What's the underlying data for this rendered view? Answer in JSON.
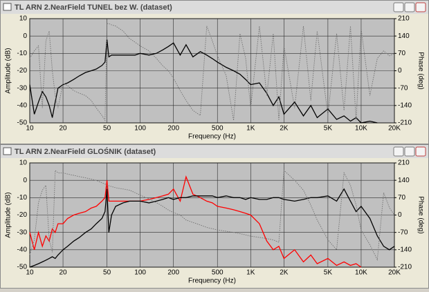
{
  "chart_data": [
    {
      "type": "line",
      "title": "TL ARN 2.NearField TUNEL bez W. (dataset)",
      "xlabel": "Frequency (Hz)",
      "ylabel": "Amplitude (dB)",
      "y2label": "Phase (deg)",
      "xscale": "log",
      "grid": true,
      "xlim": [
        10,
        20000
      ],
      "xticks": [
        10,
        20,
        50,
        100,
        200,
        500,
        {
          "value": 1000,
          "label": "1K"
        },
        {
          "value": 2000,
          "label": "2K"
        },
        {
          "value": 5000,
          "label": "5K"
        },
        {
          "value": 10000,
          "label": "10K"
        },
        {
          "value": 20000,
          "label": "20K"
        }
      ],
      "ylim": [
        -50,
        10
      ],
      "yticks": [
        -50,
        -40,
        -30,
        -20,
        -10,
        0,
        10
      ],
      "y2lim": [
        -210,
        210
      ],
      "y2ticks": [
        -210,
        -140,
        -70,
        0,
        70,
        140,
        210
      ],
      "x": [
        10,
        11,
        12,
        13,
        14,
        15,
        16,
        17,
        18,
        20,
        22,
        25,
        28,
        32,
        36,
        40,
        45,
        48,
        50,
        52,
        55,
        60,
        70,
        80,
        90,
        100,
        120,
        140,
        160,
        180,
        200,
        230,
        260,
        300,
        350,
        400,
        450,
        500,
        600,
        700,
        800,
        900,
        1000,
        1200,
        1400,
        1600,
        1800,
        2000,
        2500,
        3000,
        3500,
        4000,
        5000,
        6000,
        7000,
        8000,
        9000,
        10000,
        12000,
        14000,
        16000,
        18000,
        20000
      ],
      "series": [
        {
          "color": "#000000",
          "linestyle": "solid",
          "values": [
            -28,
            -45,
            -38,
            -32,
            -35,
            -40,
            -47,
            -38,
            -30,
            -28,
            -27,
            -25,
            -23,
            -21,
            -20,
            -19,
            -17,
            -15,
            -2,
            -12,
            -11,
            -11,
            -11,
            -11,
            -11,
            -10,
            -11,
            -10,
            -8,
            -6,
            -4,
            -11,
            -5,
            -12,
            -9,
            -11,
            -13,
            -15,
            -18,
            -20,
            -22,
            -25,
            -28,
            -27,
            -33,
            -40,
            -35,
            -45,
            -38,
            -46,
            -40,
            -47,
            -42,
            -48,
            -46,
            -49,
            -47,
            -50,
            -49,
            -50,
            null,
            null,
            null
          ]
        },
        {
          "color": "#707070",
          "linestyle": "dotted",
          "axis": "y2",
          "values": [
            50,
            80,
            100,
            -150,
            120,
            160,
            0,
            -100,
            -150,
            -50,
            -60,
            -80,
            -90,
            -100,
            -120,
            -150,
            -180,
            -200,
            190,
            190,
            185,
            180,
            160,
            130,
            115,
            100,
            80,
            50,
            20,
            0,
            -30,
            -80,
            -120,
            -160,
            -180,
            180,
            120,
            60,
            -20,
            -200,
            150,
            50,
            -150,
            180,
            -100,
            150,
            -200,
            100,
            -150,
            180,
            -120,
            160,
            -180,
            150,
            -160,
            180,
            -200,
            170,
            -100,
            50,
            80,
            60,
            70
          ]
        }
      ]
    },
    {
      "type": "line",
      "title": "TL ARN 2.NearField GLOŚNIK (dataset)",
      "xlabel": "Frequency (Hz)",
      "ylabel": "Amplitude (dB)",
      "y2label": "Phase (deg)",
      "xscale": "log",
      "grid": true,
      "xlim": [
        10,
        20000
      ],
      "xticks": [
        10,
        20,
        50,
        100,
        200,
        500,
        {
          "value": 1000,
          "label": "1K"
        },
        {
          "value": 2000,
          "label": "2K"
        },
        {
          "value": 5000,
          "label": "5K"
        },
        {
          "value": 10000,
          "label": "10K"
        },
        {
          "value": 20000,
          "label": "20K"
        }
      ],
      "ylim": [
        -50,
        10
      ],
      "yticks": [
        -50,
        -40,
        -30,
        -20,
        -10,
        0,
        10
      ],
      "y2lim": [
        -210,
        210
      ],
      "y2ticks": [
        -210,
        -140,
        -70,
        0,
        70,
        140,
        210
      ],
      "x": [
        10,
        11,
        12,
        13,
        14,
        15,
        16,
        17,
        18,
        20,
        22,
        25,
        28,
        32,
        36,
        40,
        45,
        48,
        50,
        52,
        55,
        60,
        70,
        80,
        90,
        100,
        120,
        140,
        160,
        180,
        200,
        230,
        260,
        300,
        350,
        400,
        450,
        500,
        600,
        700,
        800,
        900,
        1000,
        1200,
        1400,
        1600,
        1800,
        2000,
        2500,
        3000,
        3500,
        4000,
        5000,
        6000,
        7000,
        8000,
        9000,
        10000,
        12000,
        14000,
        16000,
        18000,
        20000
      ],
      "series": [
        {
          "color": "#ff0000",
          "linestyle": "solid",
          "values": [
            -30,
            -40,
            -30,
            -38,
            -32,
            -35,
            -28,
            -30,
            -25,
            -25,
            -22,
            -20,
            -19,
            -18,
            -16,
            -15,
            -12,
            -10,
            0,
            -12,
            -12,
            -12,
            -12,
            -12,
            -12,
            -12,
            -11,
            -10,
            -9,
            -8,
            -5,
            -12,
            2,
            -8,
            -10,
            -12,
            -13,
            -15,
            -16,
            -17,
            -18,
            -19,
            -20,
            -25,
            -35,
            -40,
            -38,
            -45,
            -40,
            -47,
            -43,
            -48,
            -45,
            -49,
            -47,
            -49,
            -48,
            -50,
            null,
            null,
            null,
            null,
            null
          ]
        },
        {
          "color": "#000000",
          "linestyle": "solid",
          "values": [
            -50,
            -49,
            -48,
            -47,
            -46,
            -45,
            -44,
            -45,
            -43,
            -40,
            -38,
            -35,
            -33,
            -30,
            -28,
            -25,
            -22,
            -18,
            -5,
            -30,
            -20,
            -15,
            -13,
            -12,
            -12,
            -12,
            -13,
            -12,
            -11,
            -10,
            -11,
            -10,
            -10,
            -9,
            -9,
            -9,
            -9,
            -10,
            -9,
            -10,
            -10,
            -11,
            -10,
            -11,
            -11,
            -10,
            -10,
            -11,
            -12,
            -11,
            -10,
            -10,
            -9,
            -12,
            -5,
            -12,
            -18,
            -15,
            -22,
            -32,
            -38,
            -40,
            -38
          ]
        },
        {
          "color": "#707070",
          "linestyle": "dotted",
          "axis": "y2",
          "values": [
            -160,
            -100,
            50,
            100,
            120,
            -100,
            -150,
            180,
            170,
            170,
            165,
            160,
            155,
            150,
            145,
            140,
            130,
            125,
            120,
            118,
            115,
            110,
            105,
            100,
            90,
            80,
            65,
            50,
            35,
            20,
            10,
            0,
            -20,
            -30,
            -40,
            -50,
            -55,
            -60,
            -65,
            -70,
            -75,
            -80,
            -85,
            -90,
            -95,
            -100,
            -110,
            180,
            140,
            100,
            40,
            -20,
            -100,
            -140,
            170,
            120,
            40,
            -60,
            -120,
            -180,
            90,
            30,
            0
          ]
        }
      ]
    }
  ]
}
